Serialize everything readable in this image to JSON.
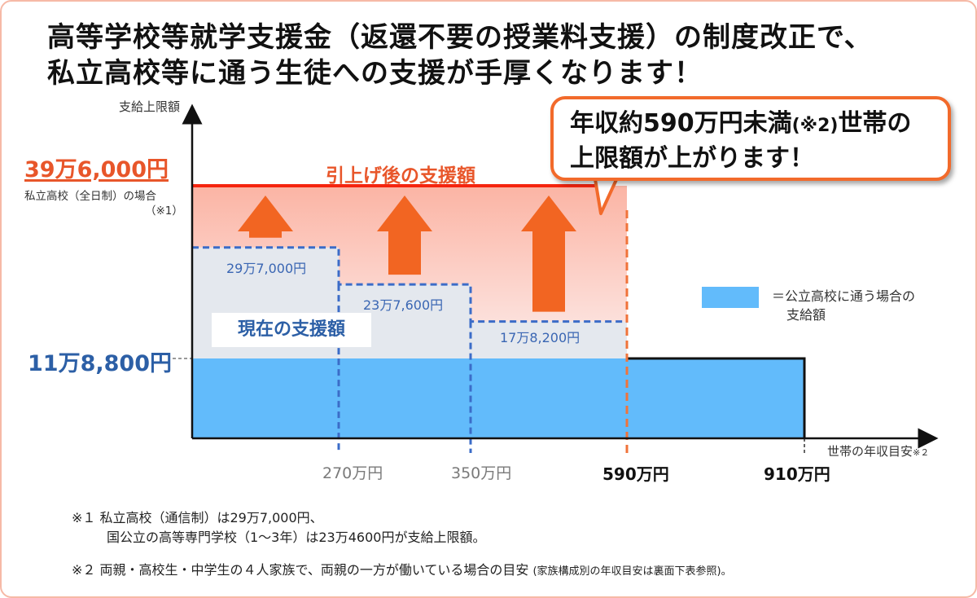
{
  "title": {
    "line1": "高等学校等就学支援金（返還不要の授業料支援）の制度改正で、",
    "line2": "私立高校等に通う生徒への支援が手厚くなります！"
  },
  "callout": {
    "line1_a": "年収約590万円未満",
    "line1_note": "(※2)",
    "line1_b": "世帯の",
    "line2": "上限額が上がります！"
  },
  "chart_data": {
    "type": "area",
    "ylabel": "支給上限額",
    "xlabel": "世帯の年収目安",
    "xlabel_note": "※２",
    "x_breakpoints": [
      {
        "value": 270,
        "label": "270万円"
      },
      {
        "value": 350,
        "label": "350万円"
      },
      {
        "value": 590,
        "label": "590万円"
      },
      {
        "value": 910,
        "label": "910万円"
      }
    ],
    "y_ticks": [
      {
        "value": 396000,
        "label": "39万6,000円",
        "note_line1": "私立高校（全日制）の場合",
        "note_line2": "（※1）"
      },
      {
        "value": 118800,
        "label": "11万8,800円"
      }
    ],
    "series": [
      {
        "name": "引上げ後の支援額",
        "segments": [
          {
            "from": 0,
            "to": 590,
            "value": 396000
          }
        ]
      },
      {
        "name": "現在の支援額",
        "segments": [
          {
            "from": 0,
            "to": 270,
            "value": 297000,
            "label": "29万7,000円"
          },
          {
            "from": 270,
            "to": 350,
            "value": 237600,
            "label": "23万7,600円"
          },
          {
            "from": 350,
            "to": 590,
            "value": 178200,
            "label": "17万8,200円"
          }
        ]
      },
      {
        "name": "公立高校に通う場合の支給額",
        "segments": [
          {
            "from": 0,
            "to": 910,
            "value": 118800
          }
        ]
      }
    ],
    "legend": {
      "position": "right",
      "line1": "＝公立高校に通う場合の",
      "line2": "支給額"
    },
    "colors": {
      "after": "#f5250f",
      "after_fill_top": "#fbb4a4",
      "current_line": "#3b6cc8",
      "current_fill": "#e4e8ee",
      "public_fill": "#62bbfb",
      "arrow": "#f26522",
      "cutoff_line": "#f0733a"
    }
  },
  "notes": {
    "n1_line1": "※１ 私立高校（通信制）は29万7,000円、",
    "n1_line2": "国公立の高等専門学校（1～3年）は23万4600円が支給上限額。",
    "n2_main": "※２ 両親・高校生・中学生の４人家族で、両親の一方が働いている場合の目安 ",
    "n2_small": "(家族構成別の年収目安は裏面下表参照)。"
  }
}
